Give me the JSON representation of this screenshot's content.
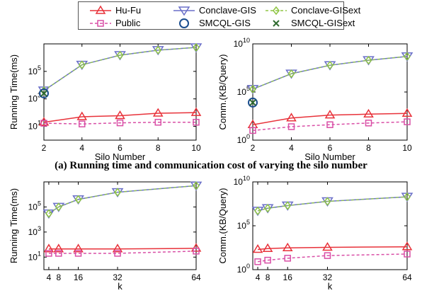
{
  "legend": [
    {
      "name": "Hu-Fu",
      "color": "#e8323a",
      "marker": "triangle-up",
      "dash": false
    },
    {
      "name": "Conclave-GIS",
      "color": "#6a6fc8",
      "marker": "triangle-down",
      "dash": false
    },
    {
      "name": "Conclave-GISext",
      "color": "#8fc544",
      "marker": "diamond",
      "dash": true
    },
    {
      "name": "Public",
      "color": "#d94fa6",
      "marker": "square",
      "dash": true
    },
    {
      "name": "SMCQL-GIS",
      "color": "#1a4d8f",
      "marker": "circle",
      "dash": false
    },
    {
      "name": "SMCQL-GISext",
      "color": "#2f6b2f",
      "marker": "x",
      "dash": false
    }
  ],
  "captions": {
    "a": "(a) Running time and communication cost of varying the silo number"
  },
  "chart_data": [
    {
      "type": "line",
      "ylog": true,
      "x": [
        2,
        4,
        6,
        8,
        10
      ],
      "xticks": [
        "2",
        "4",
        "6",
        "8",
        "10"
      ],
      "xlim": [
        2,
        10
      ],
      "xlabel": "Silo Number",
      "ylabel": "Running Time(ms)",
      "ylim_exp": [
        0,
        7
      ],
      "yticks": [
        1,
        3,
        5
      ],
      "series": [
        {
          "name": "Hu-Fu",
          "values": [
            20,
            50,
            60,
            90,
            100
          ]
        },
        {
          "name": "Public",
          "values": [
            17,
            15,
            18,
            20,
            20
          ]
        },
        {
          "name": "Conclave-GIS",
          "values": [
            4000,
            300000,
            1500000,
            3500000,
            5500000
          ]
        },
        {
          "name": "Conclave-GISext",
          "values": [
            4000,
            300000,
            1500000,
            3500000,
            5500000
          ]
        },
        {
          "name": "SMCQL-GIS",
          "points": [
            [
              2,
              2500
            ]
          ]
        },
        {
          "name": "SMCQL-GISext",
          "points": [
            [
              2,
              2500
            ]
          ]
        }
      ]
    },
    {
      "type": "line",
      "ylog": true,
      "x": [
        2,
        4,
        6,
        8,
        10
      ],
      "xticks": [
        "2",
        "4",
        "6",
        "8",
        "10"
      ],
      "xlim": [
        2,
        10
      ],
      "xlabel": "Silo Number",
      "ylabel": "Comm.(KB/Query)",
      "ylim_exp": [
        0,
        10
      ],
      "yticks": [
        0,
        5,
        10
      ],
      "series": [
        {
          "name": "Hu-Fu",
          "values": [
            40,
            200,
            400,
            500,
            600
          ]
        },
        {
          "name": "Public",
          "values": [
            10,
            25,
            40,
            60,
            80
          ]
        },
        {
          "name": "Conclave-GIS",
          "values": [
            200000,
            8000000,
            60000000,
            200000000,
            500000000
          ]
        },
        {
          "name": "Conclave-GISext",
          "values": [
            200000,
            8000000,
            60000000,
            200000000,
            500000000
          ]
        },
        {
          "name": "SMCQL-GIS",
          "points": [
            [
              2,
              8000
            ]
          ]
        },
        {
          "name": "SMCQL-GISext",
          "points": [
            [
              2,
              8000
            ]
          ]
        }
      ]
    },
    {
      "type": "line",
      "ylog": true,
      "x": [
        4,
        8,
        16,
        32,
        64
      ],
      "xticks": [
        "4",
        "8",
        "16",
        "32",
        "64"
      ],
      "xlim": [
        2,
        64
      ],
      "xlabel": "k",
      "ylabel": "Running Time(ms)",
      "ylim_exp": [
        0,
        7
      ],
      "yticks": [
        1,
        3,
        5
      ],
      "series": [
        {
          "name": "Hu-Fu",
          "values": [
            45,
            45,
            45,
            45,
            50
          ]
        },
        {
          "name": "Public",
          "values": [
            20,
            20,
            20,
            20,
            30
          ]
        },
        {
          "name": "Conclave-GIS",
          "values": [
            30000,
            100000,
            400000,
            1500000,
            5000000
          ]
        },
        {
          "name": "Conclave-GISext",
          "values": [
            30000,
            100000,
            400000,
            1500000,
            5000000
          ]
        }
      ]
    },
    {
      "type": "line",
      "ylog": true,
      "x": [
        4,
        8,
        16,
        32,
        64
      ],
      "xticks": [
        "4",
        "8",
        "16",
        "32",
        "64"
      ],
      "xlim": [
        2,
        64
      ],
      "xlabel": "k",
      "ylabel": "Comm.(KB/Query)",
      "ylim_exp": [
        0,
        10
      ],
      "yticks": [
        0,
        5,
        10
      ],
      "series": [
        {
          "name": "Hu-Fu",
          "values": [
            200,
            250,
            300,
            350,
            400
          ]
        },
        {
          "name": "Public",
          "values": [
            8,
            12,
            20,
            40,
            60
          ]
        },
        {
          "name": "Conclave-GIS",
          "values": [
            5000000,
            10000000,
            20000000,
            60000000,
            200000000
          ]
        },
        {
          "name": "Conclave-GISext",
          "values": [
            5000000,
            10000000,
            20000000,
            60000000,
            200000000
          ]
        }
      ]
    }
  ]
}
